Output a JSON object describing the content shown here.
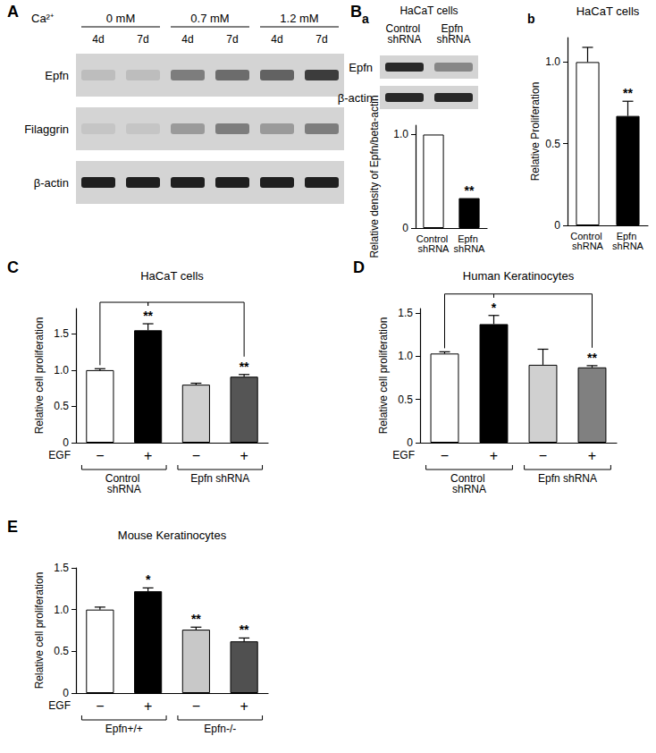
{
  "chart_data": [
    {
      "type": "blot",
      "panel": "A",
      "group_label": "Ca²⁺",
      "groups": [
        {
          "label": "0 mM",
          "lanes": [
            "4d",
            "7d"
          ]
        },
        {
          "label": "0.7 mM",
          "lanes": [
            "4d",
            "7d"
          ]
        },
        {
          "label": "1.2 mM",
          "lanes": [
            "4d",
            "7d"
          ]
        }
      ],
      "rows": [
        {
          "name": "Epfn",
          "intensity": [
            0.12,
            0.12,
            0.45,
            0.55,
            0.6,
            0.8
          ]
        },
        {
          "name": "Filaggrin",
          "intensity": [
            0.08,
            0.08,
            0.3,
            0.45,
            0.3,
            0.45
          ]
        },
        {
          "name": "β-actin",
          "intensity": [
            0.95,
            0.95,
            0.95,
            0.95,
            0.95,
            0.95
          ]
        }
      ]
    },
    {
      "type": "blot",
      "panel": "B",
      "subpanel": "a",
      "title": "HaCaT cells",
      "lanes": [
        "Control shRNA",
        "Epfn shRNA"
      ],
      "rows": [
        {
          "name": "Epfn",
          "intensity": [
            0.9,
            0.4
          ]
        },
        {
          "name": "β-actin",
          "intensity": [
            0.9,
            0.9
          ]
        }
      ]
    },
    {
      "type": "bar",
      "y_label": "Relative density of Epfn/beta-actin",
      "categories": [
        "Control shRNA",
        "Epfn shRNA"
      ],
      "values": [
        1.0,
        0.32
      ],
      "colors": [
        "#ffffff",
        "#000000"
      ],
      "annotations": [
        null,
        "**"
      ],
      "ylim": [
        0,
        1.1
      ],
      "yticks": [
        0,
        {
          "value": 1,
          "label": "1.0"
        }
      ],
      "grid": false
    },
    {
      "type": "bar",
      "subpanel": "b",
      "title": "HaCaT cells",
      "y_label": "Relative Proliferation",
      "categories": [
        "Control shRNA",
        "Epfn shRNA"
      ],
      "values": [
        1.0,
        0.67
      ],
      "errors": [
        0.09,
        0.09
      ],
      "colors": [
        "#ffffff",
        "#000000"
      ],
      "annotations": [
        null,
        "**"
      ],
      "ylim": [
        0,
        1.15
      ],
      "yticks": [
        0,
        0.5,
        {
          "value": 1,
          "label": "1.0"
        }
      ],
      "grid": false
    },
    {
      "type": "bar",
      "panel": "C",
      "title": "HaCaT cells",
      "y_label": "Relative cell proliferation",
      "x_label": "EGF",
      "categories": [
        "−",
        "+",
        "−",
        "+"
      ],
      "category_groups": [
        "Control shRNA",
        "Control shRNA",
        "Epfn shRNA",
        "Epfn shRNA"
      ],
      "values": [
        1.0,
        1.55,
        0.8,
        0.91
      ],
      "errors": [
        0.02,
        0.09,
        0.02,
        0.03
      ],
      "colors": [
        "#ffffff",
        "#000000",
        "#d0d0d0",
        "#555555"
      ],
      "annotations": [
        null,
        "**",
        null,
        "**"
      ],
      "comparisons": [
        [
          0,
          1
        ],
        [
          1,
          3
        ]
      ],
      "ylim": [
        0,
        1.85
      ],
      "yticks": [
        0,
        0.5,
        {
          "value": 1,
          "label": "1.0"
        },
        1.5
      ],
      "grid": false
    },
    {
      "type": "bar",
      "panel": "D",
      "title": "Human Keratinocytes",
      "y_label": "Relative cell proliferation",
      "x_label": "EGF",
      "categories": [
        "−",
        "+",
        "−",
        "+"
      ],
      "category_groups": [
        "Control shRNA",
        "Control shRNA",
        "Epfn shRNA",
        "Epfn shRNA"
      ],
      "values": [
        1.03,
        1.37,
        0.9,
        0.87
      ],
      "errors": [
        0.02,
        0.1,
        0.18,
        0.02
      ],
      "colors": [
        "#ffffff",
        "#000000",
        "#d0d0d0",
        "#808080"
      ],
      "annotations": [
        null,
        "*",
        null,
        "**"
      ],
      "comparisons": [
        [
          0,
          1
        ],
        [
          1,
          3
        ]
      ],
      "ylim": [
        0,
        1.55
      ],
      "yticks": [
        0,
        0.5,
        {
          "value": 1,
          "label": "1.0"
        },
        1.5
      ],
      "grid": false
    },
    {
      "type": "bar",
      "panel": "E",
      "title": "Mouse Keratinocytes",
      "y_label": "Relative cell proliferation",
      "x_label": "EGF",
      "categories": [
        "−",
        "+",
        "−",
        "+"
      ],
      "category_groups": [
        "Epfn+/+",
        "Epfn+/+",
        "Epfn-/-",
        "Epfn-/-"
      ],
      "values": [
        1.0,
        1.22,
        0.76,
        0.62
      ],
      "errors": [
        0.03,
        0.04,
        0.03,
        0.04
      ],
      "colors": [
        "#ffffff",
        "#000000",
        "#c8c8c8",
        "#505050"
      ],
      "annotations": [
        null,
        "*",
        "**",
        "**"
      ],
      "ylim": [
        0,
        1.5
      ],
      "yticks": [
        0,
        0.5,
        {
          "value": 1,
          "label": "1.0"
        },
        1.5
      ],
      "grid": false
    }
  ]
}
